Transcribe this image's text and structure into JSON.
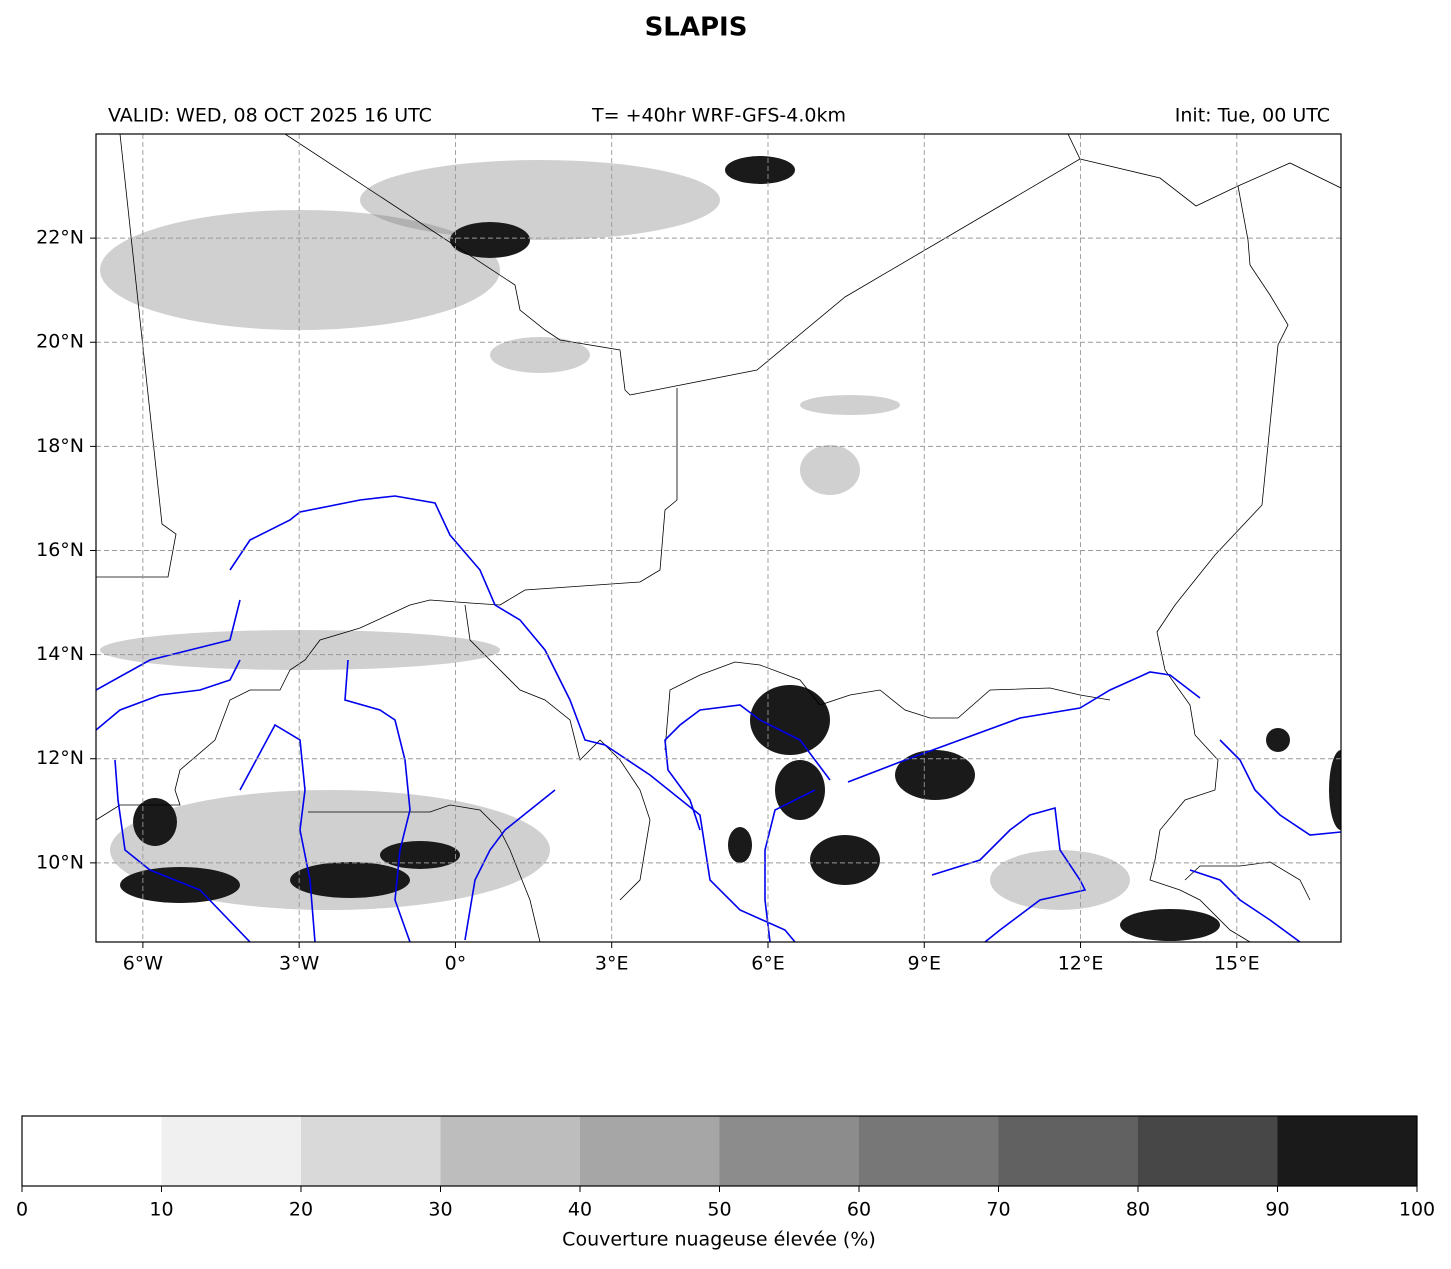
{
  "title": "SLAPIS",
  "header": {
    "valid": "VALID: WED, 08 OCT 2025 16 UTC",
    "run": "T= +40hr WRF-GFS-4.0km",
    "init": "Init: Tue, 00 UTC"
  },
  "map": {
    "xlim": [
      -6.9,
      17
    ],
    "ylim": [
      8.48,
      24
    ],
    "xticks": [
      {
        "value": -6,
        "label": "6°W"
      },
      {
        "value": -3,
        "label": "3°W"
      },
      {
        "value": 0,
        "label": "0°"
      },
      {
        "value": 3,
        "label": "3°E"
      },
      {
        "value": 6,
        "label": "6°E"
      },
      {
        "value": 9,
        "label": "9°E"
      },
      {
        "value": 12,
        "label": "12°E"
      },
      {
        "value": 15,
        "label": "15°E"
      }
    ],
    "yticks": [
      {
        "value": 10,
        "label": "10°N"
      },
      {
        "value": 12,
        "label": "12°N"
      },
      {
        "value": 14,
        "label": "14°N"
      },
      {
        "value": 16,
        "label": "16°N"
      },
      {
        "value": 18,
        "label": "18°N"
      },
      {
        "value": 20,
        "label": "20°N"
      },
      {
        "value": 22,
        "label": "22°N"
      }
    ],
    "grid": true
  },
  "colorbar": {
    "ticks": [
      0,
      10,
      20,
      30,
      40,
      50,
      60,
      70,
      80,
      90,
      100
    ],
    "colors": [
      "#ffffff",
      "#f0f0f0",
      "#d9d9d9",
      "#bdbdbd",
      "#a6a6a6",
      "#8c8c8c",
      "#777777",
      "#616161",
      "#474747",
      "#1a1a1a"
    ],
    "label": "Couverture nuageuse élevée (%)"
  }
}
